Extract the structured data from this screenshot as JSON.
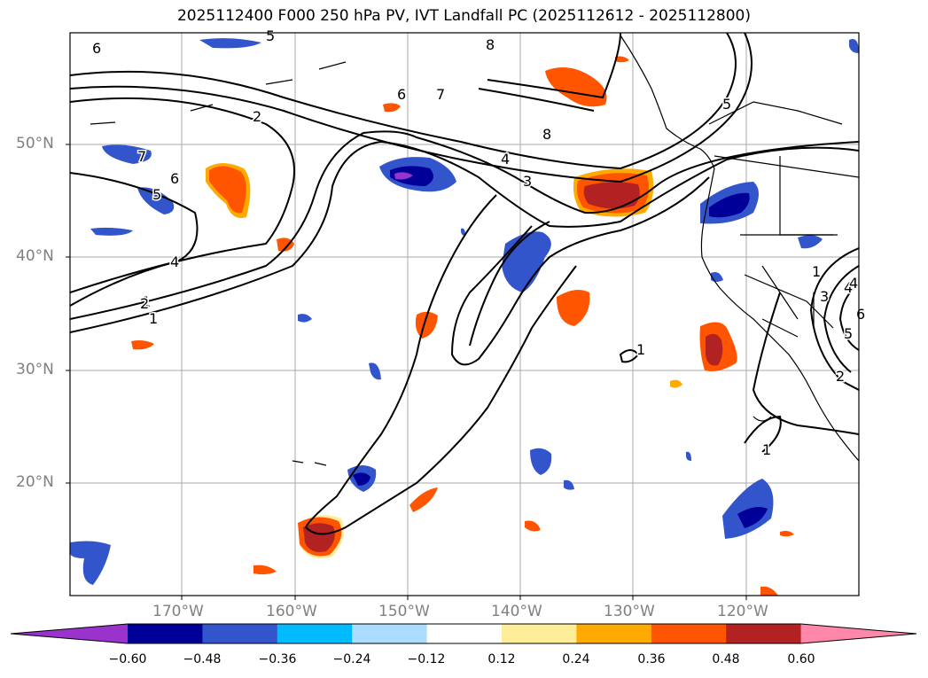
{
  "title": "2025112400 F000 250 hPa PV, IVT Landfall PC (2025112612 - 2025112800)",
  "axes": {
    "lat_labels": [
      "50°N",
      "40°N",
      "30°N",
      "20°N"
    ],
    "lon_labels": [
      "170°W",
      "160°W",
      "150°W",
      "140°W",
      "130°W",
      "120°W"
    ]
  },
  "colorbar": {
    "colors": [
      "#9933cc",
      "#000099",
      "#3355cc",
      "#00bbff",
      "#aaddff",
      "#ffffff",
      "#ffee99",
      "#ffaa00",
      "#ff5500",
      "#b22222",
      "#ff88aa"
    ],
    "ticks": [
      "−0.60",
      "−0.48",
      "−0.36",
      "−0.24",
      "−0.12",
      "0.12",
      "0.24",
      "0.36",
      "0.48",
      "0.60"
    ]
  },
  "contour_labels": [
    "6",
    "5",
    "8",
    "6",
    "7",
    "2",
    "8",
    "4",
    "3",
    "5",
    "4",
    "7",
    "6",
    "5",
    "4",
    "2",
    "1",
    "1",
    "1",
    "1",
    "3",
    "4",
    "5",
    "6",
    "2",
    "1"
  ],
  "colors": {
    "contour": "#000000",
    "grid": "#aaaaaa",
    "coast": "#000000"
  }
}
